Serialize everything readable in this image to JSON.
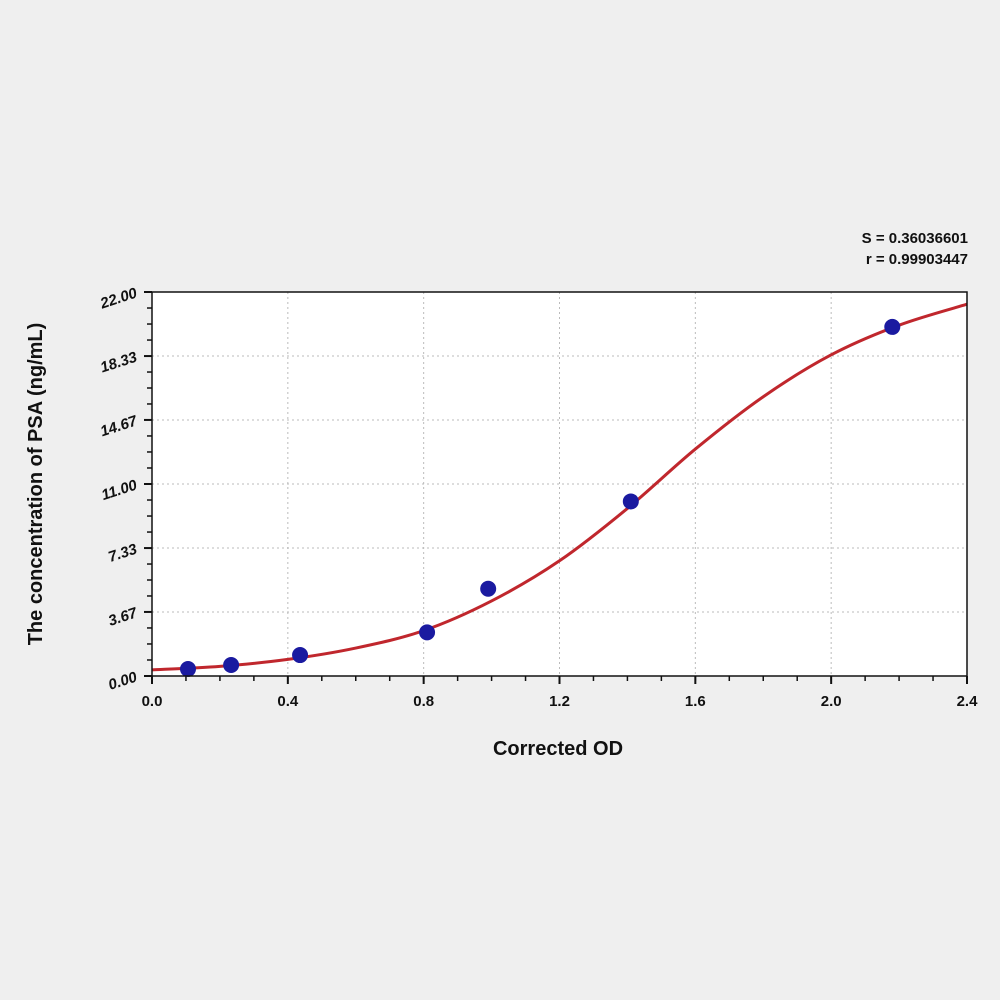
{
  "chart_data": {
    "type": "scatter",
    "title": "",
    "xlabel": "Corrected OD",
    "ylabel": "The concentration of PSA (ng/mL)",
    "xlim": [
      0,
      2.4
    ],
    "ylim": [
      0,
      22
    ],
    "x_ticks": [
      "0.0",
      "0.4",
      "0.8",
      "1.2",
      "1.6",
      "2.0",
      "2.4"
    ],
    "y_ticks": [
      "0.00",
      "3.67",
      "7.33",
      "11.00",
      "14.67",
      "18.33",
      "22.00"
    ],
    "grid": true,
    "annotations": {
      "s": "S = 0.36036601",
      "r": "r = 0.99903447"
    },
    "colors": {
      "points": "#1a1aa0",
      "curve": "#c0272d",
      "background": "#efefef",
      "plot": "#ffffff"
    },
    "points": {
      "x": [
        0.106,
        0.233,
        0.436,
        0.81,
        0.99,
        1.41,
        2.18
      ],
      "y": [
        0.4,
        0.63,
        1.2,
        2.5,
        5.0,
        10.0,
        20.0
      ]
    },
    "fit_curve": {
      "x": [
        0,
        0.2,
        0.4,
        0.6,
        0.8,
        1.0,
        1.2,
        1.4,
        1.6,
        1.8,
        2.0,
        2.2,
        2.4
      ],
      "y": [
        0.35,
        0.55,
        0.95,
        1.6,
        2.6,
        4.3,
        6.6,
        9.6,
        13.0,
        16.0,
        18.4,
        20.1,
        21.3
      ]
    }
  }
}
